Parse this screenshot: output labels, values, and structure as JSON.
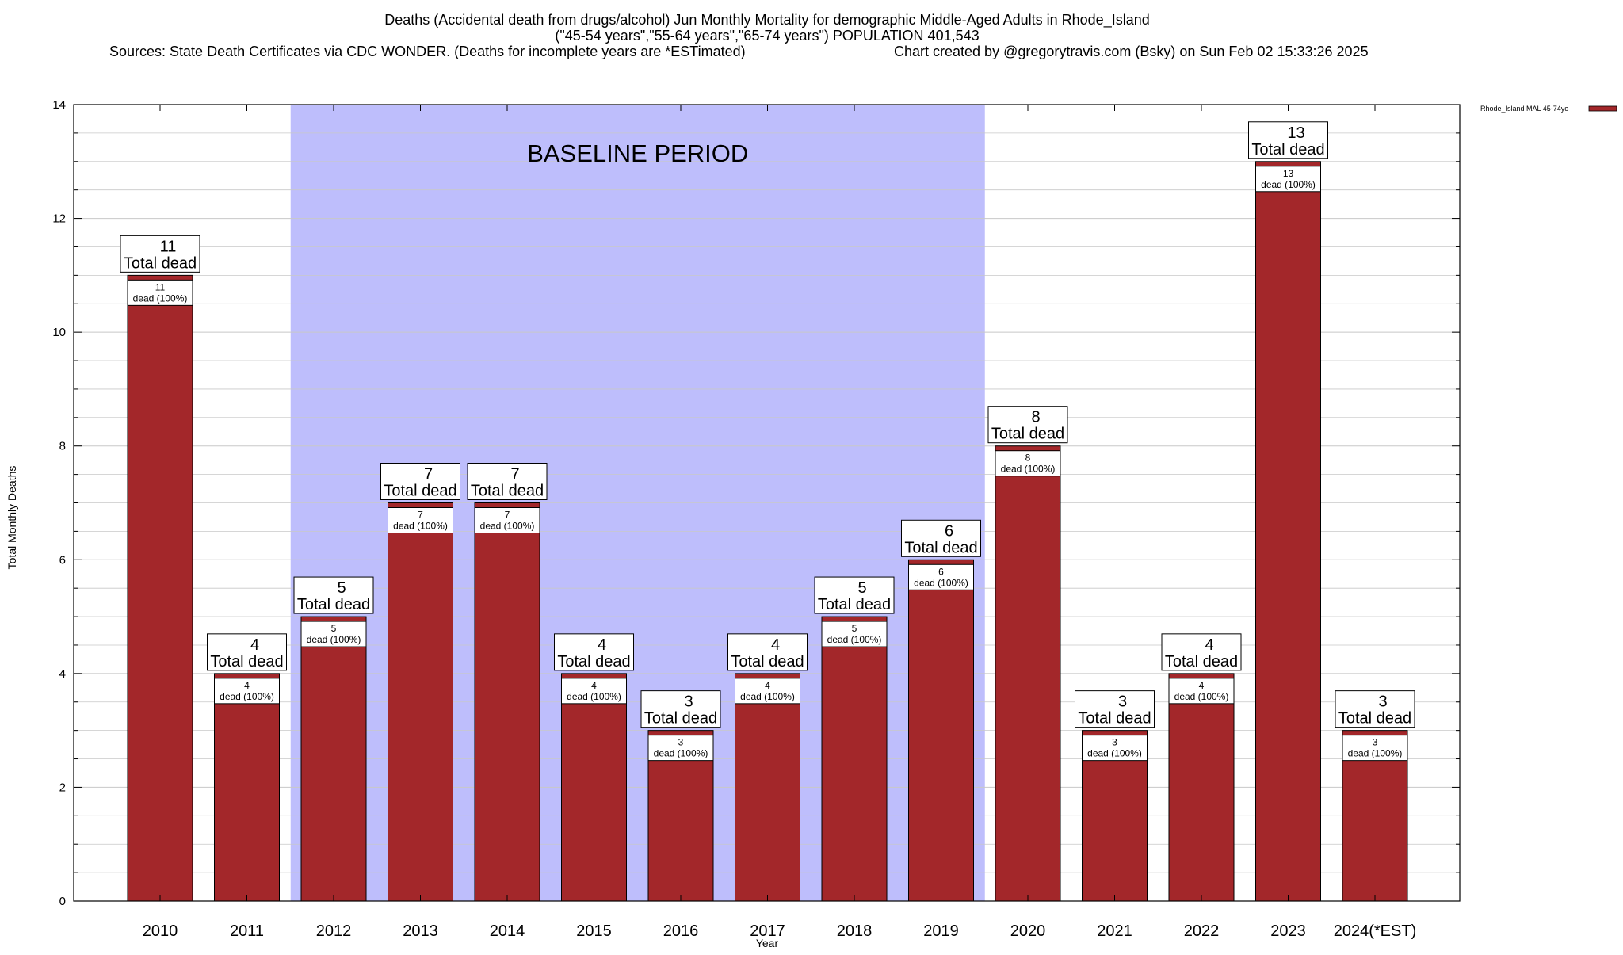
{
  "header": {
    "line1": "Deaths (Accidental death from drugs/alcohol) Jun Monthly Mortality for demographic Middle-Aged Adults in Rhode_Island",
    "line2": "(\"45-54 years\",\"55-64 years\",\"65-74 years\") POPULATION 401,543",
    "line3_left": "Sources: State Death Certificates via CDC WONDER. (Deaths for incomplete years are *ESTimated)",
    "line3_right": "Chart created by @gregorytravis.com (Bsky) on Sun Feb 02 15:33:26 2025"
  },
  "colors": {
    "bar": "#a3272a",
    "baseline": "#bebefc",
    "grid": "#c8c8c8"
  },
  "chart_data": {
    "type": "bar",
    "xlabel": "Year",
    "ylabel": "Total Monthly Deaths",
    "ylim": [
      0,
      14
    ],
    "y_ticks": [
      "0",
      "2",
      "4",
      "6",
      "8",
      "10",
      "12",
      "14"
    ],
    "grid": true,
    "legend_position": "top-right",
    "categories": [
      "2010",
      "2011",
      "2012",
      "2013",
      "2014",
      "2015",
      "2016",
      "2017",
      "2018",
      "2019",
      "2020",
      "2021",
      "2022",
      "2023",
      "2024(*EST)"
    ],
    "series": [
      {
        "name": "Rhode_Island MAL 45-74yo",
        "values": [
          11,
          4,
          5,
          7,
          7,
          4,
          3,
          4,
          5,
          6,
          8,
          3,
          4,
          13,
          3
        ]
      }
    ],
    "total_label": "Total dead",
    "inner_label": "dead (100%)",
    "annotation": {
      "text": "BASELINE PERIOD",
      "from": "2012",
      "to": "2019"
    }
  }
}
